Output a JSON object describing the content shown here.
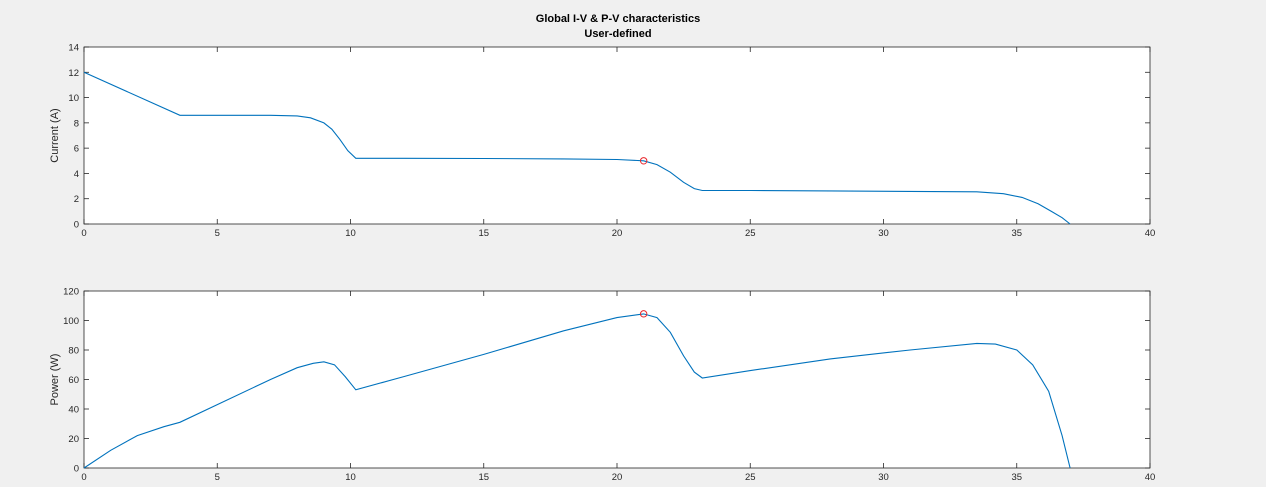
{
  "window": {
    "title_line1": "Global I-V & P-V characteristics",
    "title_line2": "User-defined"
  },
  "colors": {
    "background": "#f0f0f0",
    "axes_bg": "#ffffff",
    "line": "#0072bd",
    "marker": "#e8262b",
    "axis": "#262626"
  },
  "chart_data": [
    {
      "type": "line",
      "xlabel": "",
      "ylabel": "Current (A)",
      "xlim": [
        0,
        40
      ],
      "ylim": [
        0,
        14
      ],
      "xticks": [
        0,
        5,
        10,
        15,
        20,
        25,
        30,
        35,
        40
      ],
      "yticks": [
        0,
        2,
        4,
        6,
        8,
        10,
        12,
        14
      ],
      "grid": false,
      "series": [
        {
          "x": [
            0,
            3.6,
            5,
            7,
            8,
            8.5,
            9,
            9.3,
            9.6,
            9.9,
            10.2,
            12,
            15,
            18,
            20,
            21,
            21.5,
            22,
            22.5,
            22.9,
            23.2,
            25,
            28,
            31,
            33.5,
            34.5,
            35.2,
            35.8,
            36.3,
            36.7,
            37.0
          ],
          "y": [
            12.0,
            8.6,
            8.6,
            8.6,
            8.55,
            8.4,
            8.0,
            7.5,
            6.7,
            5.8,
            5.2,
            5.2,
            5.18,
            5.15,
            5.1,
            5.0,
            4.7,
            4.1,
            3.3,
            2.8,
            2.65,
            2.65,
            2.62,
            2.58,
            2.55,
            2.4,
            2.1,
            1.6,
            1.0,
            0.5,
            0.0
          ]
        }
      ],
      "marker": {
        "x": 21.0,
        "y": 5.0
      }
    },
    {
      "type": "line",
      "xlabel": "",
      "ylabel": "Power (W)",
      "xlim": [
        0,
        40
      ],
      "ylim": [
        0,
        120
      ],
      "xticks": [
        0,
        5,
        10,
        15,
        20,
        25,
        30,
        35,
        40
      ],
      "yticks": [
        0,
        20,
        40,
        60,
        80,
        100,
        120
      ],
      "grid": false,
      "series": [
        {
          "x": [
            0,
            1,
            2,
            3,
            3.6,
            5,
            7,
            8,
            8.6,
            9,
            9.4,
            9.8,
            10.2,
            12,
            15,
            18,
            20,
            21,
            21.5,
            22,
            22.5,
            22.9,
            23.2,
            25,
            28,
            31,
            33.5,
            34.2,
            35,
            35.6,
            36.2,
            36.7,
            37.0
          ],
          "y": [
            0,
            12,
            22,
            28,
            31,
            43,
            60,
            68,
            71,
            72,
            70,
            62,
            53,
            62,
            77,
            93,
            102,
            104.5,
            102,
            92,
            76,
            65,
            61,
            66,
            74,
            80,
            84.5,
            84,
            80,
            70,
            52,
            22,
            0
          ]
        }
      ],
      "marker": {
        "x": 21.0,
        "y": 104.5
      }
    }
  ]
}
